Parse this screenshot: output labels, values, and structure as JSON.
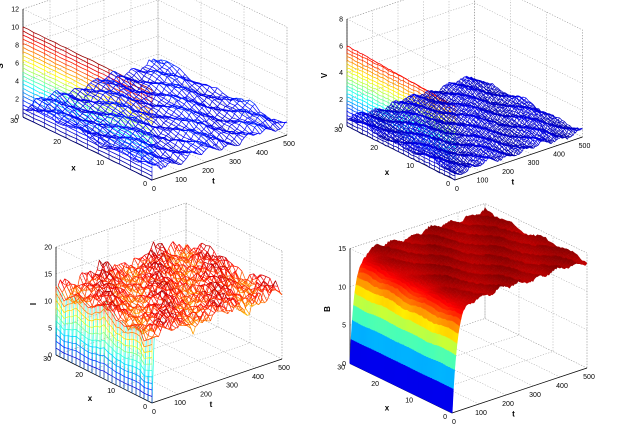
{
  "chart_data": [
    {
      "type": "surface",
      "zlabel": "S",
      "xlabel": "x",
      "tlabel": "t",
      "zlim": [
        0,
        12
      ],
      "zticks": [
        0,
        2,
        4,
        6,
        8,
        10,
        12
      ],
      "xticks": [
        0,
        10,
        20,
        30
      ],
      "tticks": [
        0,
        100,
        200,
        300,
        400,
        500
      ],
      "x_range": [
        0,
        30
      ],
      "t_range": [
        0,
        500
      ],
      "style": "mesh",
      "initial_profile": {
        "at_x0": 10,
        "at_x30": 10,
        "fill": "jet gradient 0 to 10"
      },
      "steady_level": 1.2,
      "noise": 0.6
    },
    {
      "type": "surface",
      "zlabel": "V",
      "xlabel": "x",
      "tlabel": "t",
      "zlim": [
        0,
        8
      ],
      "zticks": [
        0,
        2,
        4,
        6,
        8
      ],
      "xticks": [
        0,
        10,
        20,
        30
      ],
      "tticks": [
        0,
        100,
        200,
        300,
        400,
        500
      ],
      "x_range": [
        0,
        30
      ],
      "t_range": [
        0,
        500
      ],
      "style": "dense-mesh",
      "initial_profile": {
        "at_x0": 5.5,
        "at_x30": 6.0,
        "fill": "jet gradient 0 to 6"
      },
      "steady_level": 0.5,
      "noise": 0.3
    },
    {
      "type": "surface",
      "zlabel": "I",
      "xlabel": "x",
      "tlabel": "t",
      "zlim": [
        0,
        20
      ],
      "zticks": [
        0,
        5,
        10,
        15,
        20
      ],
      "xticks": [
        0,
        10,
        20,
        30
      ],
      "tticks": [
        0,
        100,
        200,
        300,
        400,
        500
      ],
      "x_range": [
        0,
        30
      ],
      "t_range": [
        0,
        500
      ],
      "style": "mesh",
      "initial_profile": {
        "at_x0": 0,
        "at_x30": 0,
        "fill": "jet gradient 0 to 13"
      },
      "steady_level": 12.5,
      "noise": 1.8
    },
    {
      "type": "surface",
      "zlabel": "B",
      "xlabel": "x",
      "tlabel": "t",
      "zlim": [
        0,
        15
      ],
      "zticks": [
        0,
        5,
        10,
        15
      ],
      "xticks": [
        0,
        10,
        20,
        30
      ],
      "tticks": [
        0,
        100,
        200,
        300,
        400,
        500
      ],
      "x_range": [
        0,
        30
      ],
      "t_range": [
        0,
        500
      ],
      "style": "dense-mesh",
      "initial_profile": {
        "at_x0": 0,
        "at_x30": 0,
        "fill": "jet gradient 0 to 14 rising over first 50 t"
      },
      "steady_level": 14.0,
      "noise": 0.5
    }
  ]
}
